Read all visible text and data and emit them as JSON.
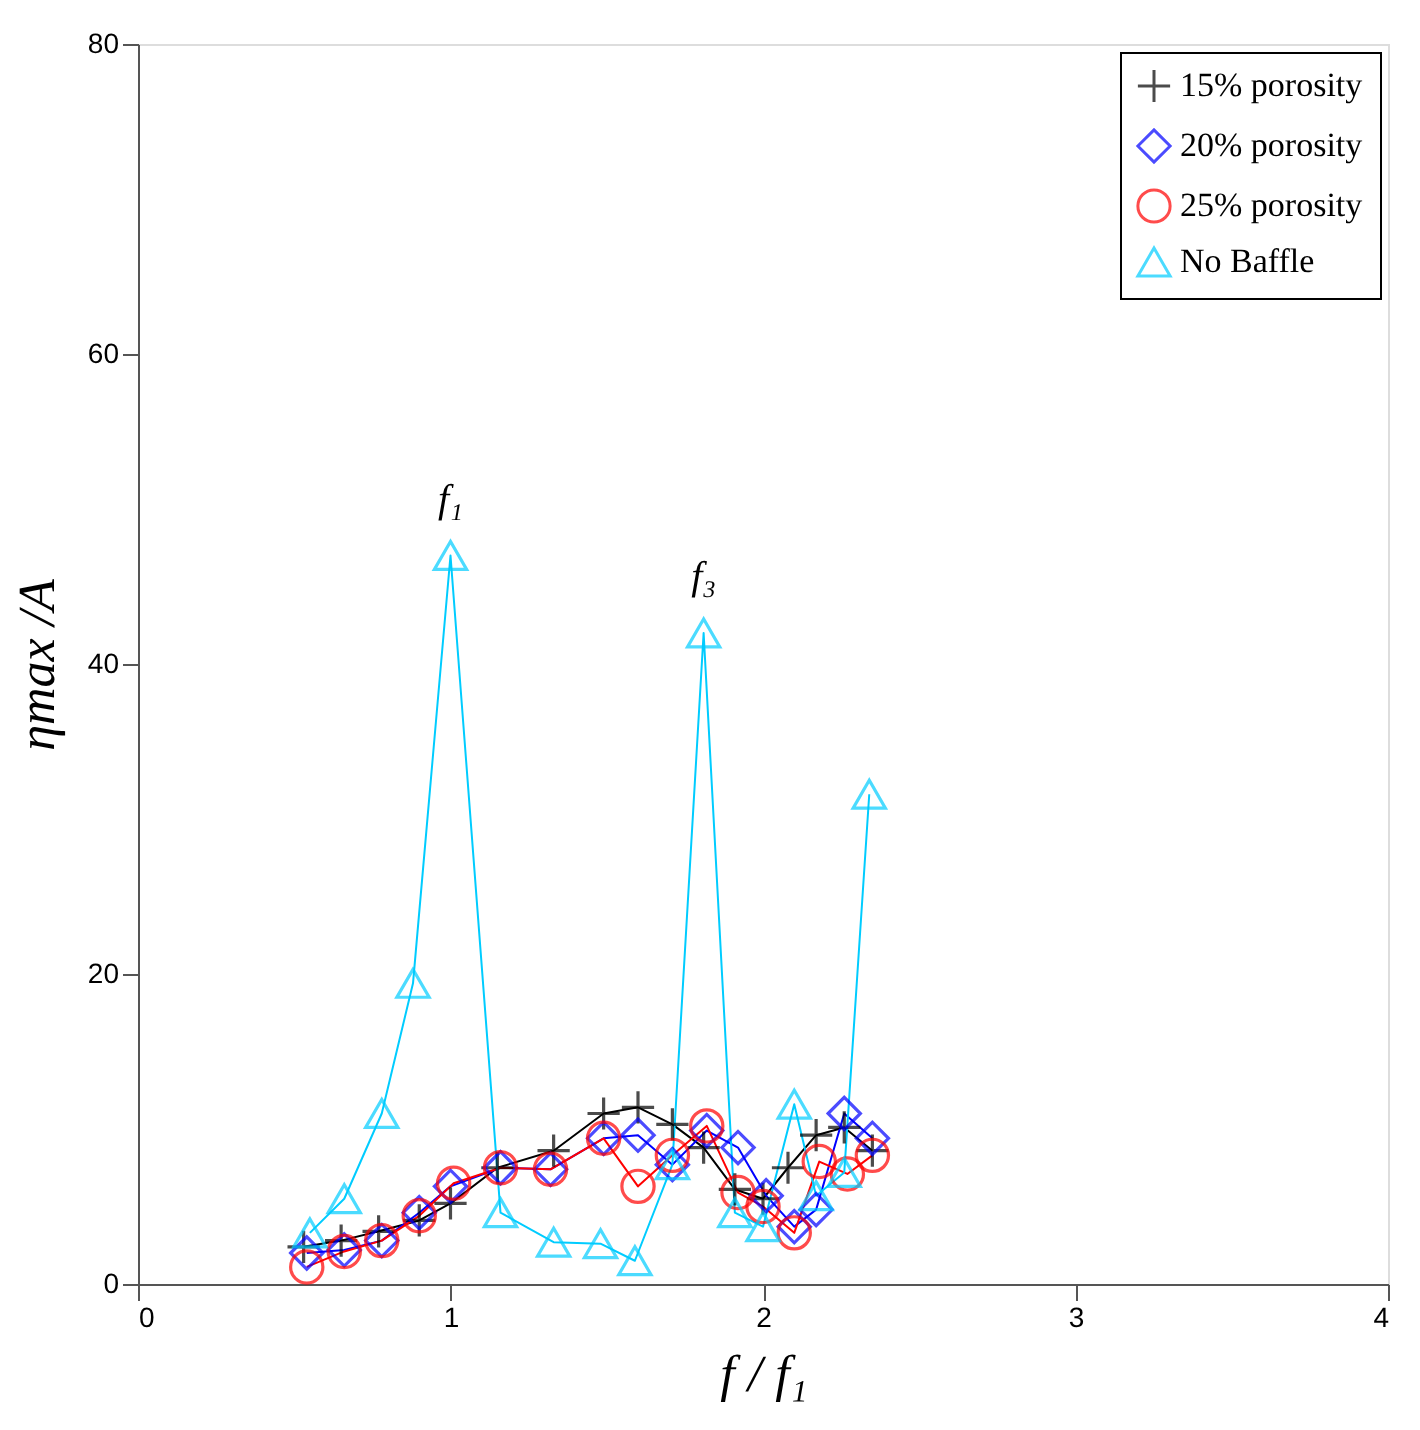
{
  "chart_data": {
    "type": "line",
    "xlabel": "f / f₁",
    "ylabel": "ηmax /A",
    "xlim": [
      0,
      4
    ],
    "ylim": [
      0,
      80
    ],
    "xticks": [
      0,
      1,
      2,
      3,
      4
    ],
    "yticks": [
      0,
      20,
      40,
      60,
      80
    ],
    "grid": false,
    "legend": "top right",
    "line_style": "solid",
    "annotations": [
      {
        "text": "f₁",
        "x": 1.0,
        "y": 47
      },
      {
        "text": "f₃",
        "x": 1.81,
        "y": 42
      }
    ],
    "series": [
      {
        "name": "15% porosity",
        "color": "#000000",
        "marker": "cross",
        "x": [
          0.53,
          0.65,
          0.77,
          0.9,
          1.0,
          1.15,
          1.33,
          1.49,
          1.6,
          1.71,
          1.81,
          1.91,
          2.0,
          2.08,
          2.17,
          2.26,
          2.35
        ],
        "values": [
          2.4,
          2.8,
          3.4,
          4.1,
          5.2,
          7.5,
          8.6,
          11,
          11.4,
          10.3,
          8.8,
          6.1,
          5.5,
          7.5,
          9.6,
          10.1,
          8.6
        ]
      },
      {
        "name": "20% porosity",
        "color": "#0000ff",
        "marker": "diamond",
        "x": [
          0.54,
          0.66,
          0.78,
          0.9,
          1.0,
          1.16,
          1.32,
          1.49,
          1.6,
          1.71,
          1.82,
          1.92,
          2.01,
          2.1,
          2.17,
          2.26,
          2.35
        ],
        "values": [
          2.0,
          2.2,
          2.8,
          4.6,
          6.3,
          7.5,
          7.4,
          9.4,
          9.6,
          7.7,
          9.9,
          8.8,
          5.7,
          3.7,
          4.8,
          11,
          9.4
        ]
      },
      {
        "name": "25% porosity",
        "color": "#ff0000",
        "marker": "circle",
        "x": [
          0.54,
          0.66,
          0.78,
          0.9,
          1.01,
          1.16,
          1.32,
          1.49,
          1.6,
          1.71,
          1.82,
          1.92,
          2.0,
          2.1,
          2.18,
          2.27,
          2.35
        ],
        "values": [
          1.1,
          2.1,
          2.8,
          4.4,
          6.5,
          7.5,
          7.4,
          9.4,
          6.3,
          8.3,
          10.2,
          5.9,
          5.0,
          3.3,
          7.9,
          7.1,
          8.3
        ]
      },
      {
        "name": "No Baffle",
        "color": "#00ccff",
        "marker": "triangle",
        "x": [
          0.55,
          0.66,
          0.78,
          0.88,
          1.0,
          1.16,
          1.33,
          1.48,
          1.59,
          1.71,
          1.81,
          1.91,
          2.0,
          2.1,
          2.17,
          2.26,
          2.34
        ],
        "values": [
          3.3,
          5.5,
          11,
          19.4,
          47,
          4.6,
          2.7,
          2.6,
          1.5,
          7.7,
          42,
          4.6,
          3.7,
          11.6,
          5.7,
          7.2,
          31.6
        ]
      }
    ]
  }
}
